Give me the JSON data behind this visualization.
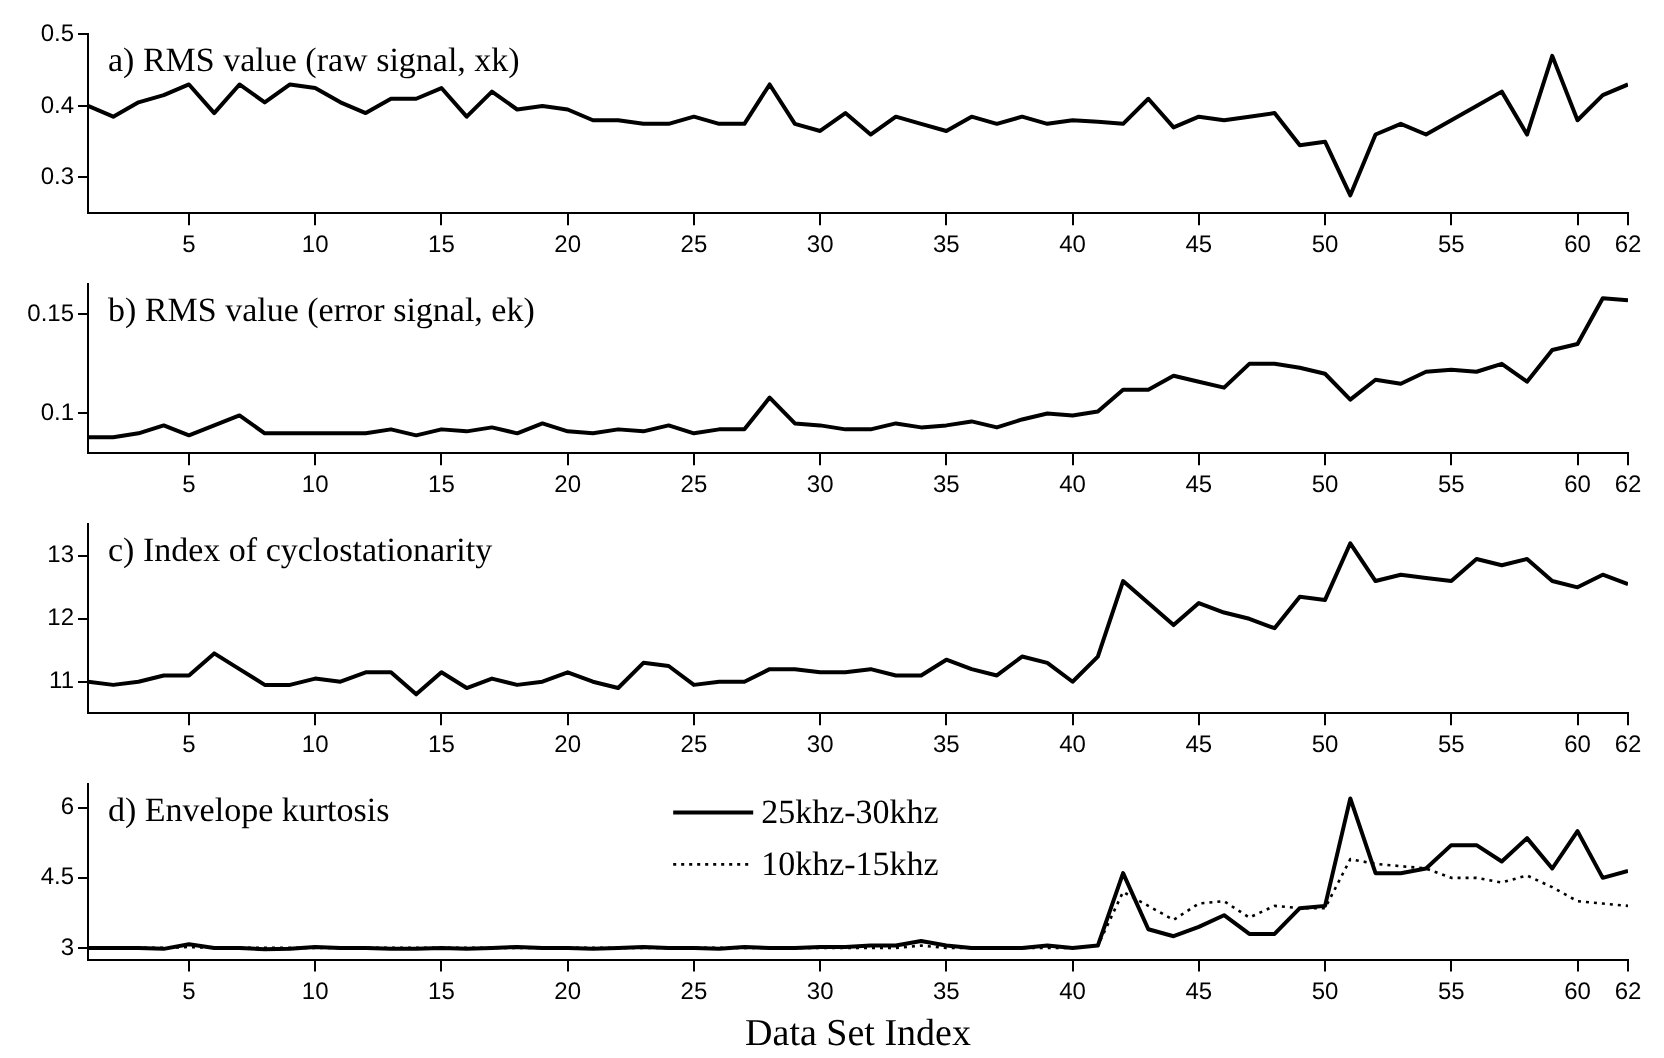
{
  "chart_data": [
    {
      "type": "line",
      "title": "a) RMS value (raw signal, xk)",
      "x": [
        1,
        2,
        3,
        4,
        5,
        6,
        7,
        8,
        9,
        10,
        11,
        12,
        13,
        14,
        15,
        16,
        17,
        18,
        19,
        20,
        21,
        22,
        23,
        24,
        25,
        26,
        27,
        28,
        29,
        30,
        31,
        32,
        33,
        34,
        35,
        36,
        37,
        38,
        39,
        40,
        41,
        42,
        43,
        44,
        45,
        46,
        47,
        48,
        49,
        50,
        51,
        52,
        53,
        54,
        55,
        56,
        57,
        58,
        59,
        60,
        61,
        62
      ],
      "series": [
        {
          "color": "#000000",
          "values": [
            0.4,
            0.385,
            0.405,
            0.415,
            0.43,
            0.39,
            0.43,
            0.405,
            0.43,
            0.425,
            0.405,
            0.39,
            0.41,
            0.41,
            0.425,
            0.385,
            0.42,
            0.395,
            0.4,
            0.395,
            0.38,
            0.38,
            0.375,
            0.375,
            0.385,
            0.375,
            0.375,
            0.43,
            0.375,
            0.365,
            0.39,
            0.36,
            0.385,
            0.375,
            0.365,
            0.385,
            0.375,
            0.385,
            0.375,
            0.38,
            0.378,
            0.375,
            0.41,
            0.37,
            0.385,
            0.38,
            0.385,
            0.39,
            0.345,
            0.35,
            0.275,
            0.36,
            0.375,
            0.36,
            0.38,
            0.4,
            0.42,
            0.36,
            0.47,
            0.38,
            0.415,
            0.43
          ]
        }
      ],
      "xlim": [
        1,
        62
      ],
      "xticks": [
        5,
        10,
        15,
        20,
        25,
        30,
        35,
        40,
        45,
        50,
        55,
        60,
        62
      ],
      "ylim": [
        0.25,
        0.5
      ],
      "yticks": [
        0.3,
        0.4,
        0.5
      ],
      "grid": false,
      "marker": "none"
    },
    {
      "type": "line",
      "title": "b) RMS value (error signal, ek)",
      "x": [
        1,
        2,
        3,
        4,
        5,
        6,
        7,
        8,
        9,
        10,
        11,
        12,
        13,
        14,
        15,
        16,
        17,
        18,
        19,
        20,
        21,
        22,
        23,
        24,
        25,
        26,
        27,
        28,
        29,
        30,
        31,
        32,
        33,
        34,
        35,
        36,
        37,
        38,
        39,
        40,
        41,
        42,
        43,
        44,
        45,
        46,
        47,
        48,
        49,
        50,
        51,
        52,
        53,
        54,
        55,
        56,
        57,
        58,
        59,
        60,
        61,
        62
      ],
      "series": [
        {
          "color": "#000000",
          "values": [
            0.088,
            0.088,
            0.09,
            0.094,
            0.089,
            0.094,
            0.099,
            0.09,
            0.09,
            0.09,
            0.09,
            0.09,
            0.092,
            0.089,
            0.092,
            0.091,
            0.093,
            0.09,
            0.095,
            0.091,
            0.09,
            0.092,
            0.091,
            0.094,
            0.09,
            0.092,
            0.092,
            0.108,
            0.095,
            0.094,
            0.092,
            0.092,
            0.095,
            0.093,
            0.094,
            0.096,
            0.093,
            0.097,
            0.1,
            0.099,
            0.101,
            0.112,
            0.112,
            0.119,
            0.116,
            0.113,
            0.125,
            0.125,
            0.123,
            0.12,
            0.107,
            0.117,
            0.115,
            0.121,
            0.122,
            0.121,
            0.125,
            0.116,
            0.132,
            0.135,
            0.158,
            0.157
          ]
        }
      ],
      "xlim": [
        1,
        62
      ],
      "xticks": [
        5,
        10,
        15,
        20,
        25,
        30,
        35,
        40,
        45,
        50,
        55,
        60,
        62
      ],
      "ylim": [
        0.08,
        0.165
      ],
      "yticks": [
        0.1,
        0.15
      ],
      "grid": false,
      "marker": "none"
    },
    {
      "type": "line",
      "title": "c) Index of cyclostationarity",
      "x": [
        1,
        2,
        3,
        4,
        5,
        6,
        7,
        8,
        9,
        10,
        11,
        12,
        13,
        14,
        15,
        16,
        17,
        18,
        19,
        20,
        21,
        22,
        23,
        24,
        25,
        26,
        27,
        28,
        29,
        30,
        31,
        32,
        33,
        34,
        35,
        36,
        37,
        38,
        39,
        40,
        41,
        42,
        43,
        44,
        45,
        46,
        47,
        48,
        49,
        50,
        51,
        52,
        53,
        54,
        55,
        56,
        57,
        58,
        59,
        60,
        61,
        62
      ],
      "series": [
        {
          "color": "#000000",
          "values": [
            11.0,
            10.95,
            11.0,
            11.1,
            11.1,
            11.45,
            11.2,
            10.95,
            10.95,
            11.05,
            11.0,
            11.15,
            11.15,
            10.8,
            11.15,
            10.9,
            11.05,
            10.95,
            11.0,
            11.15,
            11.0,
            10.9,
            11.3,
            11.25,
            10.95,
            11.0,
            11.0,
            11.2,
            11.2,
            11.15,
            11.15,
            11.2,
            11.1,
            11.1,
            11.35,
            11.2,
            11.1,
            11.4,
            11.3,
            11.0,
            11.4,
            12.6,
            12.25,
            11.9,
            12.25,
            12.1,
            12.0,
            11.85,
            12.35,
            12.3,
            13.2,
            12.6,
            12.7,
            12.65,
            12.6,
            12.95,
            12.85,
            12.95,
            12.6,
            12.5,
            12.7,
            12.55
          ]
        }
      ],
      "xlim": [
        1,
        62
      ],
      "xticks": [
        5,
        10,
        15,
        20,
        25,
        30,
        35,
        40,
        45,
        50,
        55,
        60,
        62
      ],
      "ylim": [
        10.5,
        13.5
      ],
      "yticks": [
        11,
        12,
        13
      ],
      "grid": false,
      "marker": "none"
    },
    {
      "type": "line",
      "title": "d) Envelope kurtosis",
      "xlabel": "Data Set Index",
      "legend": "top",
      "x": [
        1,
        2,
        3,
        4,
        5,
        6,
        7,
        8,
        9,
        10,
        11,
        12,
        13,
        14,
        15,
        16,
        17,
        18,
        19,
        20,
        21,
        22,
        23,
        24,
        25,
        26,
        27,
        28,
        29,
        30,
        31,
        32,
        33,
        34,
        35,
        36,
        37,
        38,
        39,
        40,
        41,
        42,
        43,
        44,
        45,
        46,
        47,
        48,
        49,
        50,
        51,
        52,
        53,
        54,
        55,
        56,
        57,
        58,
        59,
        60,
        61,
        62
      ],
      "series": [
        {
          "name": "25khz-30khz",
          "color": "#000000",
          "line_style": "solid",
          "values": [
            3.0,
            3.0,
            3.0,
            2.98,
            3.08,
            3.0,
            3.0,
            2.97,
            2.98,
            3.02,
            3.0,
            3.0,
            2.98,
            2.98,
            3.0,
            2.98,
            3.0,
            3.02,
            3.0,
            3.0,
            2.98,
            3.0,
            3.02,
            3.0,
            3.0,
            2.98,
            3.02,
            3.0,
            3.0,
            3.02,
            3.02,
            3.05,
            3.05,
            3.15,
            3.05,
            3.0,
            3.0,
            3.0,
            3.05,
            3.0,
            3.05,
            4.6,
            3.4,
            3.25,
            3.45,
            3.7,
            3.3,
            3.3,
            3.85,
            3.9,
            6.2,
            4.6,
            4.6,
            4.7,
            5.2,
            5.2,
            4.85,
            5.35,
            4.7,
            5.5,
            4.5,
            4.65
          ]
        },
        {
          "name": "10khz-15khz",
          "color": "#000000",
          "line_style": "dotted",
          "values": [
            3.0,
            3.0,
            3.0,
            3.0,
            3.02,
            3.0,
            3.0,
            3.0,
            3.0,
            3.0,
            3.0,
            3.0,
            3.0,
            3.0,
            3.0,
            3.0,
            3.0,
            3.0,
            3.0,
            3.0,
            3.0,
            3.0,
            3.0,
            3.0,
            3.0,
            3.0,
            3.0,
            3.0,
            3.0,
            3.0,
            3.0,
            3.0,
            3.0,
            3.05,
            3.0,
            3.0,
            3.0,
            3.0,
            3.0,
            3.0,
            3.05,
            4.2,
            3.9,
            3.6,
            3.95,
            4.0,
            3.65,
            3.9,
            3.85,
            3.85,
            4.9,
            4.8,
            4.75,
            4.7,
            4.5,
            4.5,
            4.4,
            4.55,
            4.3,
            4.0,
            3.95,
            3.9
          ]
        }
      ],
      "xlim": [
        1,
        62
      ],
      "xticks": [
        5,
        10,
        15,
        20,
        25,
        30,
        35,
        40,
        45,
        50,
        55,
        60,
        62
      ],
      "ylim": [
        2.75,
        6.5
      ],
      "yticks": [
        3,
        4.5,
        6
      ],
      "grid": false,
      "marker": "none"
    }
  ]
}
